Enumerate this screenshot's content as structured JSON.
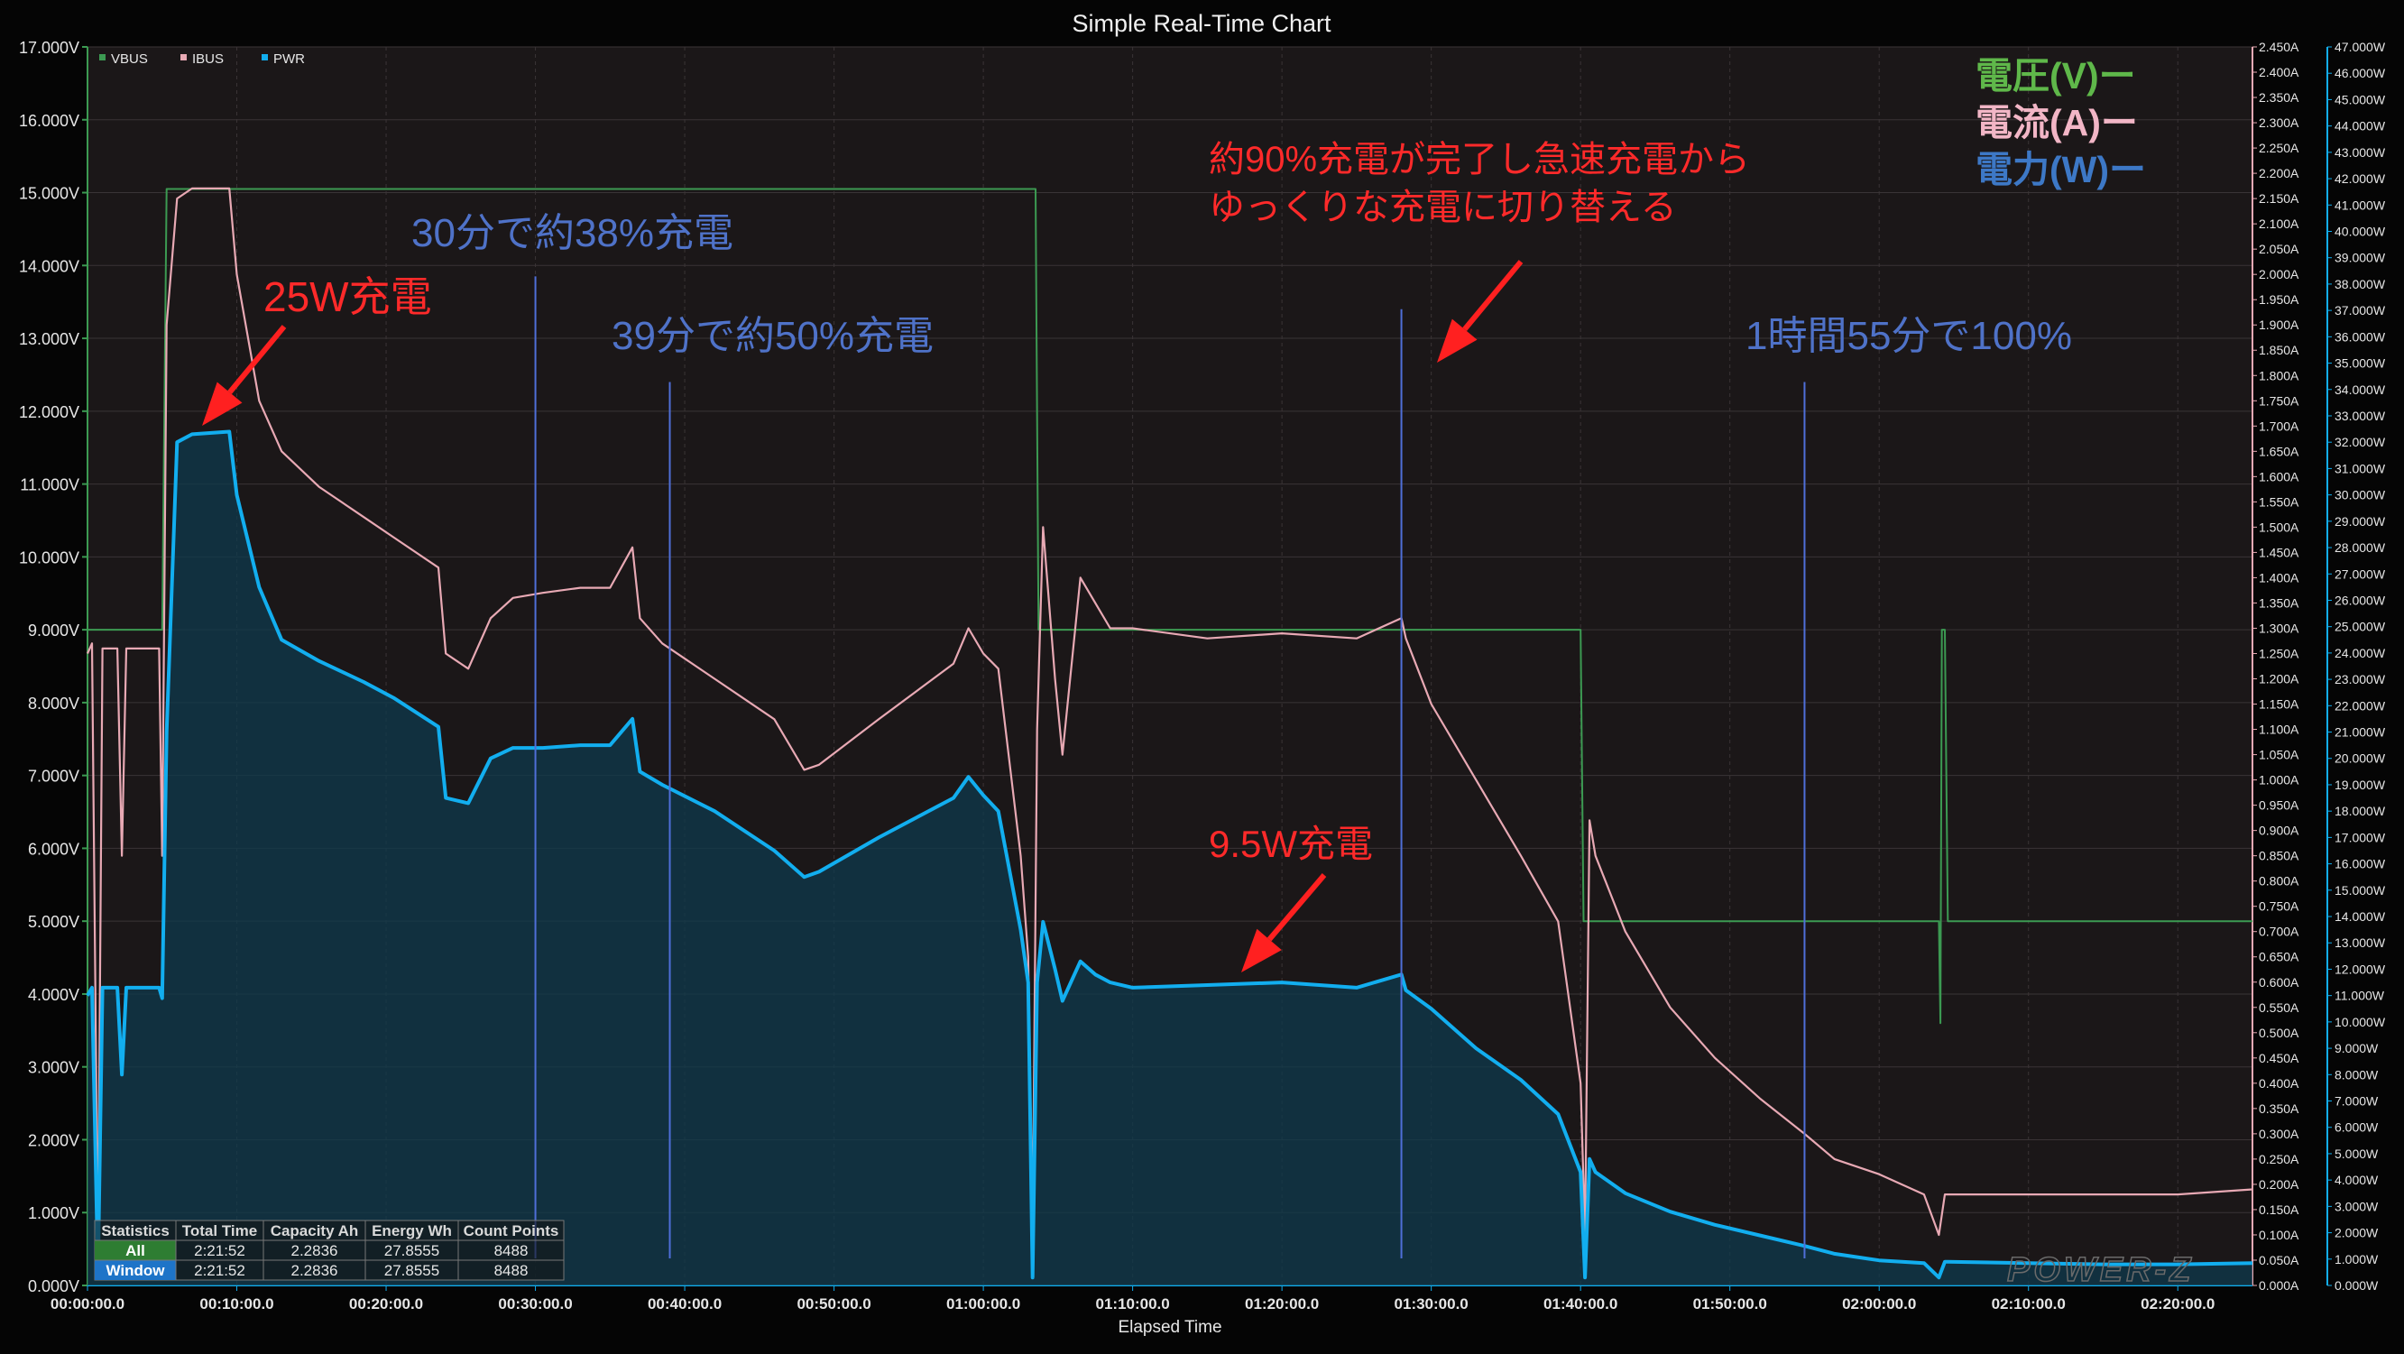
{
  "chart_data": {
    "type": "line",
    "title": "Simple Real-Time Chart",
    "xlabel": "Elapsed Time",
    "x_ticks": [
      "00:00:00.0",
      "00:10:00.0",
      "00:20:00.0",
      "00:30:00.0",
      "00:40:00.0",
      "00:50:00.0",
      "01:00:00.0",
      "01:10:00.0",
      "01:20:00.0",
      "01:30:00.0",
      "01:40:00.0",
      "01:50:00.0",
      "02:00:00.0",
      "02:10:00.0",
      "02:20:00.0"
    ],
    "xlim_minutes": [
      0,
      145
    ],
    "left_axis": {
      "unit": "V",
      "min": 0,
      "max": 17,
      "step": 1,
      "decimals": 3
    },
    "right_axis_current": {
      "unit": "A",
      "min": 0,
      "max": 2.45,
      "step": 0.05,
      "decimals": 3
    },
    "right_axis_power": {
      "unit": "W",
      "min": 0,
      "max": 47,
      "step": 1,
      "decimals": 3
    },
    "grid": true,
    "legend": {
      "placement": "top-left",
      "entries": [
        "VBUS",
        "IBUS",
        "PWR"
      ]
    },
    "series": [
      {
        "name": "VBUS",
        "axis": "left",
        "color": "#3c9a52",
        "points": [
          [
            0,
            9.0
          ],
          [
            5,
            9.0
          ],
          [
            5.3,
            15.05
          ],
          [
            63.5,
            15.05
          ],
          [
            63.7,
            9.0
          ],
          [
            100,
            9.0
          ],
          [
            100.2,
            5.0
          ],
          [
            124,
            5.0
          ],
          [
            124.1,
            3.6
          ],
          [
            124.2,
            9.0
          ],
          [
            124.4,
            9.0
          ],
          [
            124.6,
            5.0
          ],
          [
            145,
            5.0
          ]
        ]
      },
      {
        "name": "IBUS",
        "axis": "right_current",
        "color": "#e8a9b4",
        "points": [
          [
            0,
            1.25
          ],
          [
            0.3,
            1.27
          ],
          [
            0.7,
            0.05
          ],
          [
            1.0,
            1.26
          ],
          [
            2.0,
            1.26
          ],
          [
            2.3,
            0.85
          ],
          [
            2.6,
            1.26
          ],
          [
            4.8,
            1.26
          ],
          [
            5.0,
            0.85
          ],
          [
            5.3,
            1.9
          ],
          [
            6.0,
            2.15
          ],
          [
            7.0,
            2.17
          ],
          [
            9.5,
            2.17
          ],
          [
            10.0,
            2.0
          ],
          [
            11.5,
            1.75
          ],
          [
            13.0,
            1.65
          ],
          [
            15.5,
            1.58
          ],
          [
            18.5,
            1.52
          ],
          [
            20.5,
            1.48
          ],
          [
            23.5,
            1.42
          ],
          [
            24,
            1.25
          ],
          [
            25.5,
            1.22
          ],
          [
            27,
            1.32
          ],
          [
            28.5,
            1.36
          ],
          [
            30.5,
            1.37
          ],
          [
            33,
            1.38
          ],
          [
            35,
            1.38
          ],
          [
            36.5,
            1.46
          ],
          [
            37,
            1.32
          ],
          [
            38.5,
            1.27
          ],
          [
            42,
            1.2
          ],
          [
            46,
            1.12
          ],
          [
            48,
            1.02
          ],
          [
            49,
            1.03
          ],
          [
            53,
            1.12
          ],
          [
            58,
            1.23
          ],
          [
            59,
            1.3
          ],
          [
            60,
            1.25
          ],
          [
            61,
            1.22
          ],
          [
            62.5,
            0.85
          ],
          [
            63.0,
            0.65
          ],
          [
            63.3,
            0.1
          ],
          [
            63.6,
            1.1
          ],
          [
            64.0,
            1.5
          ],
          [
            64.8,
            1.2
          ],
          [
            65.3,
            1.05
          ],
          [
            66.5,
            1.4
          ],
          [
            67.5,
            1.35
          ],
          [
            68.5,
            1.3
          ],
          [
            70,
            1.3
          ],
          [
            75,
            1.28
          ],
          [
            80,
            1.29
          ],
          [
            85,
            1.28
          ],
          [
            88.0,
            1.32
          ],
          [
            88.3,
            1.28
          ],
          [
            90,
            1.15
          ],
          [
            93,
            1.0
          ],
          [
            96,
            0.85
          ],
          [
            98.5,
            0.72
          ],
          [
            100.0,
            0.4
          ],
          [
            100.3,
            0.1
          ],
          [
            100.6,
            0.92
          ],
          [
            101,
            0.85
          ],
          [
            103,
            0.7
          ],
          [
            106,
            0.55
          ],
          [
            109,
            0.45
          ],
          [
            112,
            0.37
          ],
          [
            115,
            0.3
          ],
          [
            117,
            0.25
          ],
          [
            120,
            0.22
          ],
          [
            123,
            0.18
          ],
          [
            124,
            0.1
          ],
          [
            124.4,
            0.18
          ],
          [
            130,
            0.18
          ],
          [
            135,
            0.18
          ],
          [
            140,
            0.18
          ],
          [
            145,
            0.19
          ]
        ]
      },
      {
        "name": "PWR",
        "axis": "right_power",
        "color": "#12aeef",
        "points": [
          [
            0,
            11.0
          ],
          [
            0.3,
            11.3
          ],
          [
            0.7,
            0.4
          ],
          [
            1.0,
            11.3
          ],
          [
            2.0,
            11.3
          ],
          [
            2.3,
            8.0
          ],
          [
            2.6,
            11.3
          ],
          [
            4.8,
            11.3
          ],
          [
            5.0,
            10.9
          ],
          [
            5.3,
            21.0
          ],
          [
            6.0,
            32.0
          ],
          [
            7.0,
            32.3
          ],
          [
            9.5,
            32.4
          ],
          [
            10.0,
            30.0
          ],
          [
            11.5,
            26.5
          ],
          [
            13.0,
            24.5
          ],
          [
            15.5,
            23.7
          ],
          [
            18.5,
            22.9
          ],
          [
            20.5,
            22.3
          ],
          [
            23.5,
            21.2
          ],
          [
            24,
            18.5
          ],
          [
            25.5,
            18.3
          ],
          [
            27,
            20.0
          ],
          [
            28.5,
            20.4
          ],
          [
            30.5,
            20.4
          ],
          [
            33,
            20.5
          ],
          [
            35,
            20.5
          ],
          [
            36.5,
            21.5
          ],
          [
            37,
            19.5
          ],
          [
            38.5,
            19.0
          ],
          [
            42,
            18.0
          ],
          [
            46,
            16.5
          ],
          [
            48,
            15.5
          ],
          [
            49,
            15.7
          ],
          [
            53,
            17.0
          ],
          [
            58,
            18.5
          ],
          [
            59,
            19.3
          ],
          [
            60,
            18.6
          ],
          [
            61,
            18.0
          ],
          [
            62.5,
            13.5
          ],
          [
            63.0,
            11.5
          ],
          [
            63.3,
            0.3
          ],
          [
            63.6,
            11.5
          ],
          [
            64.0,
            13.8
          ],
          [
            64.8,
            12.0
          ],
          [
            65.3,
            10.8
          ],
          [
            66.5,
            12.3
          ],
          [
            67.5,
            11.8
          ],
          [
            68.5,
            11.5
          ],
          [
            70,
            11.3
          ],
          [
            75,
            11.4
          ],
          [
            80,
            11.5
          ],
          [
            85,
            11.3
          ],
          [
            88.0,
            11.8
          ],
          [
            88.3,
            11.2
          ],
          [
            90,
            10.5
          ],
          [
            93,
            9.0
          ],
          [
            96,
            7.8
          ],
          [
            98.5,
            6.5
          ],
          [
            100.0,
            4.3
          ],
          [
            100.3,
            0.3
          ],
          [
            100.6,
            4.8
          ],
          [
            101,
            4.3
          ],
          [
            103,
            3.5
          ],
          [
            106,
            2.8
          ],
          [
            109,
            2.3
          ],
          [
            112,
            1.9
          ],
          [
            115,
            1.5
          ],
          [
            117,
            1.2
          ],
          [
            120,
            0.95
          ],
          [
            123,
            0.85
          ],
          [
            124,
            0.3
          ],
          [
            124.4,
            0.9
          ],
          [
            130,
            0.85
          ],
          [
            135,
            0.8
          ],
          [
            140,
            0.8
          ],
          [
            145,
            0.85
          ]
        ]
      }
    ],
    "markers": [
      {
        "color": "#4f6fd8",
        "x": 30,
        "v_top": 13.85
      },
      {
        "color": "#4f6fd8",
        "x": 39,
        "v_top": 12.4
      },
      {
        "color": "#4f6fd8",
        "x": 88,
        "v_top": 13.4
      },
      {
        "color": "#4f6fd8",
        "x": 115,
        "v_top": 12.4
      }
    ],
    "annotations": [
      {
        "text": "25W充電",
        "color": "#ff2a2a"
      },
      {
        "text": "30分で約38%充電",
        "color": "#4f72c8"
      },
      {
        "text": "39分で約50%充電",
        "color": "#4f72c8"
      },
      {
        "text": "約90%充電が完了し急速充電から",
        "color": "#ff2a2a"
      },
      {
        "text": "ゆっくりな充電に切り替える",
        "color": "#ff2a2a"
      },
      {
        "text": "9.5W充電",
        "color": "#ff2a2a"
      },
      {
        "text": "1時間55分で100%",
        "color": "#4f72c8"
      }
    ],
    "overlay_legend": [
      {
        "text": "電圧(V)ー",
        "color": "#5fb84a"
      },
      {
        "text": "電流(A)ー",
        "color": "#f2b6c6"
      },
      {
        "text": "電力(W)ー",
        "color": "#3d78c6"
      }
    ],
    "statistics": {
      "headers": [
        "Statistics",
        "Total Time",
        "Capacity Ah",
        "Energy Wh",
        "Count Points"
      ],
      "rows": [
        {
          "label": "All",
          "color": "#2e7d32",
          "values": [
            "2:21:52",
            "2.2836",
            "27.8555",
            "8488"
          ]
        },
        {
          "label": "Window",
          "color": "#1e74c8",
          "values": [
            "2:21:52",
            "2.2836",
            "27.8555",
            "8488"
          ]
        }
      ]
    },
    "watermark": "POWER-Z"
  }
}
